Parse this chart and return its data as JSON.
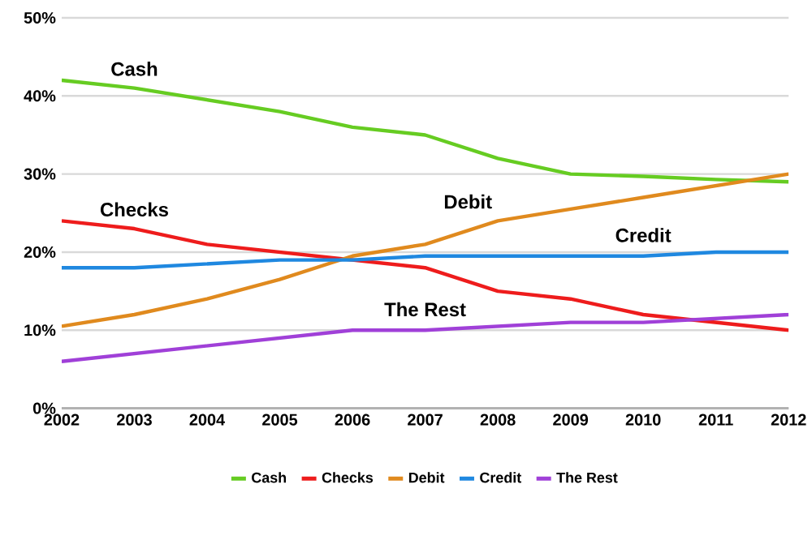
{
  "chart_data": {
    "type": "line",
    "categories": [
      "2002",
      "2003",
      "2004",
      "2005",
      "2006",
      "2007",
      "2008",
      "2009",
      "2010",
      "2011",
      "2012"
    ],
    "series": [
      {
        "name": "Cash",
        "color": "#66cc22",
        "values": [
          42,
          41,
          39.5,
          38,
          36,
          35,
          32,
          30,
          29.7,
          29.3,
          29
        ]
      },
      {
        "name": "Checks",
        "color": "#ee1c1c",
        "values": [
          24,
          23,
          21,
          20,
          19,
          18,
          15,
          14,
          12,
          11,
          10
        ]
      },
      {
        "name": "Debit",
        "color": "#e08a1e",
        "values": [
          10.5,
          12,
          14,
          16.5,
          19.5,
          21,
          24,
          25.5,
          27,
          28.5,
          30
        ]
      },
      {
        "name": "Credit",
        "color": "#1f88e0",
        "values": [
          18,
          18,
          18.5,
          19,
          19,
          19.5,
          19.5,
          19.5,
          19.5,
          20,
          20
        ]
      },
      {
        "name": "The Rest",
        "color": "#a040d8",
        "values": [
          6,
          7,
          8,
          9,
          10,
          10,
          10.5,
          11,
          11,
          11.5,
          12
        ]
      }
    ],
    "ylim": [
      0,
      50
    ],
    "yticks": [
      {
        "value": 0,
        "label": "0%"
      },
      {
        "value": 10,
        "label": "10%"
      },
      {
        "value": 20,
        "label": "20%"
      },
      {
        "value": 30,
        "label": "30%"
      },
      {
        "value": 40,
        "label": "40%"
      },
      {
        "value": 50,
        "label": "50%"
      }
    ],
    "grid": "y",
    "legend": "bottom",
    "marker": "none",
    "line_style": "solid"
  }
}
